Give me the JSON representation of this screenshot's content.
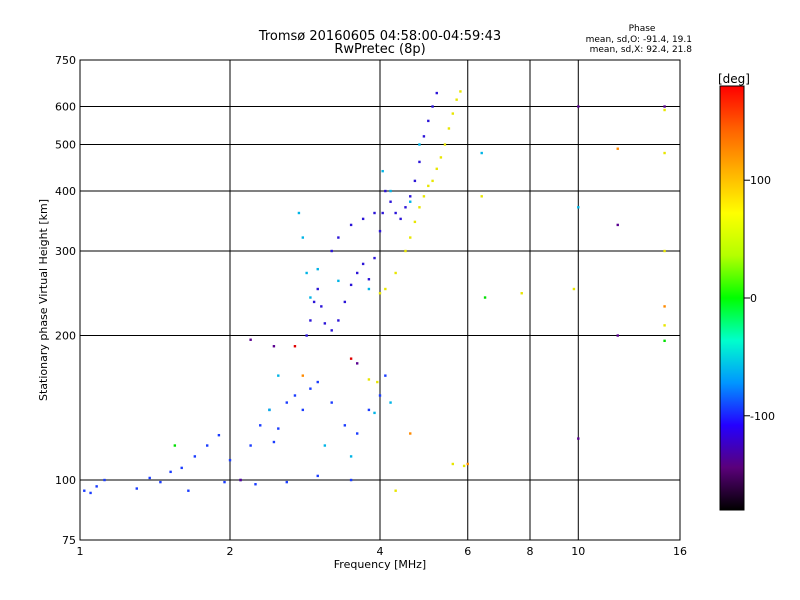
{
  "chart_data": {
    "type": "scatter",
    "title": "Tromsø 20160605 04:58:00-04:59:43",
    "subtitle": "RwPretec (8p)",
    "xlabel": "Frequency [MHz]",
    "ylabel": "Stationary phase Virtual Height [km]",
    "x_scale": "log",
    "y_scale": "log",
    "xlim": [
      1,
      16
    ],
    "ylim": [
      75,
      750
    ],
    "x_ticks": [
      1,
      2,
      4,
      6,
      8,
      10,
      16
    ],
    "y_ticks": [
      75,
      100,
      200,
      300,
      400,
      500,
      600,
      750
    ],
    "grid": true,
    "phase_info": {
      "title": "Phase",
      "line_o": "mean, sd,O: -91.4, 19.1",
      "line_x": "mean, sd,X: 92.4, 21.8"
    },
    "colorbar": {
      "label": "[deg]",
      "range": [
        -180,
        180
      ],
      "ticks": [
        100,
        0,
        -100
      ],
      "palette": [
        "#000000",
        "#5a007a",
        "#2400ff",
        "#0096ff",
        "#00ffcc",
        "#00ff00",
        "#b4ff00",
        "#ffff00",
        "#ffb000",
        "#ff6000",
        "#ff0000"
      ]
    },
    "series": [
      {
        "color": "#1a3cff",
        "points": [
          [
            1.02,
            95
          ],
          [
            1.05,
            94
          ],
          [
            1.08,
            97
          ],
          [
            1.12,
            100
          ],
          [
            1.3,
            96
          ],
          [
            1.38,
            101
          ],
          [
            1.45,
            99
          ],
          [
            1.52,
            104
          ],
          [
            1.6,
            106
          ],
          [
            1.7,
            112
          ],
          [
            1.8,
            118
          ],
          [
            1.9,
            124
          ],
          [
            2.0,
            110
          ],
          [
            2.1,
            100
          ],
          [
            2.2,
            118
          ],
          [
            2.3,
            130
          ],
          [
            2.4,
            140
          ],
          [
            2.5,
            128
          ],
          [
            2.6,
            145
          ],
          [
            2.7,
            150
          ],
          [
            2.8,
            140
          ],
          [
            2.9,
            155
          ],
          [
            3.0,
            160
          ],
          [
            3.2,
            145
          ],
          [
            3.4,
            130
          ],
          [
            3.6,
            125
          ],
          [
            3.8,
            140
          ],
          [
            4.0,
            150
          ],
          [
            4.1,
            165
          ],
          [
            2.25,
            98
          ],
          [
            2.6,
            99
          ],
          [
            3.0,
            102
          ],
          [
            3.5,
            100
          ],
          [
            1.65,
            95
          ],
          [
            1.95,
            99
          ],
          [
            2.45,
            120
          ]
        ]
      },
      {
        "color": "#2b14d8",
        "points": [
          [
            2.85,
            200
          ],
          [
            2.9,
            215
          ],
          [
            2.95,
            235
          ],
          [
            3.0,
            250
          ],
          [
            3.05,
            230
          ],
          [
            3.1,
            212
          ],
          [
            3.2,
            205
          ],
          [
            3.3,
            215
          ],
          [
            3.4,
            235
          ],
          [
            3.5,
            255
          ],
          [
            3.6,
            270
          ],
          [
            3.7,
            282
          ],
          [
            3.8,
            262
          ],
          [
            3.9,
            290
          ],
          [
            4.0,
            330
          ],
          [
            4.05,
            360
          ],
          [
            4.1,
            400
          ],
          [
            4.2,
            380
          ],
          [
            4.3,
            360
          ],
          [
            4.4,
            350
          ],
          [
            4.5,
            370
          ],
          [
            4.6,
            390
          ],
          [
            4.7,
            420
          ],
          [
            4.8,
            460
          ],
          [
            4.9,
            520
          ],
          [
            5.0,
            560
          ],
          [
            5.1,
            600
          ],
          [
            5.2,
            640
          ],
          [
            3.5,
            340
          ],
          [
            3.7,
            350
          ],
          [
            3.9,
            360
          ],
          [
            3.3,
            320
          ],
          [
            3.2,
            300
          ]
        ]
      },
      {
        "color": "#00b4e6",
        "points": [
          [
            2.75,
            360
          ],
          [
            2.8,
            320
          ],
          [
            2.85,
            270
          ],
          [
            2.9,
            240
          ],
          [
            3.0,
            275
          ],
          [
            3.3,
            260
          ],
          [
            3.8,
            250
          ],
          [
            4.05,
            440
          ],
          [
            4.2,
            400
          ],
          [
            4.6,
            380
          ],
          [
            4.8,
            500
          ],
          [
            2.5,
            165
          ],
          [
            2.4,
            140
          ],
          [
            3.1,
            118
          ],
          [
            3.5,
            112
          ],
          [
            3.9,
            138
          ],
          [
            4.2,
            145
          ],
          [
            6.4,
            480
          ],
          [
            10.0,
            370
          ]
        ]
      },
      {
        "color": "#e8e600",
        "points": [
          [
            4.0,
            245
          ],
          [
            4.1,
            250
          ],
          [
            4.3,
            270
          ],
          [
            4.5,
            300
          ],
          [
            4.6,
            320
          ],
          [
            4.7,
            345
          ],
          [
            4.8,
            370
          ],
          [
            4.9,
            390
          ],
          [
            5.0,
            410
          ],
          [
            5.1,
            420
          ],
          [
            5.2,
            445
          ],
          [
            5.3,
            470
          ],
          [
            5.4,
            500
          ],
          [
            5.5,
            540
          ],
          [
            5.6,
            580
          ],
          [
            5.7,
            620
          ],
          [
            5.8,
            645
          ],
          [
            3.95,
            160
          ],
          [
            3.8,
            162
          ],
          [
            5.6,
            108
          ],
          [
            5.9,
            107
          ],
          [
            4.3,
            95
          ],
          [
            14.9,
            300
          ],
          [
            14.9,
            590
          ],
          [
            14.9,
            480
          ],
          [
            14.9,
            210
          ],
          [
            9.8,
            250
          ],
          [
            7.7,
            245
          ],
          [
            6.4,
            390
          ]
        ]
      },
      {
        "color": "#00e000",
        "points": [
          [
            6.5,
            240
          ],
          [
            14.9,
            195
          ],
          [
            1.55,
            118
          ]
        ]
      },
      {
        "color": "#ff8a00",
        "points": [
          [
            4.6,
            125
          ],
          [
            6.0,
            108
          ],
          [
            14.9,
            230
          ],
          [
            12.0,
            490
          ],
          [
            2.8,
            165
          ]
        ]
      },
      {
        "color": "#e00000",
        "points": [
          [
            3.5,
            179
          ],
          [
            2.7,
            190
          ]
        ]
      },
      {
        "color": "#5a0090",
        "points": [
          [
            2.2,
            196
          ],
          [
            2.45,
            190
          ],
          [
            3.6,
            175
          ],
          [
            14.9,
            600
          ],
          [
            2.1,
            100
          ],
          [
            12.0,
            200
          ],
          [
            12.0,
            340
          ],
          [
            10.0,
            600
          ],
          [
            10.0,
            122
          ]
        ]
      }
    ]
  }
}
